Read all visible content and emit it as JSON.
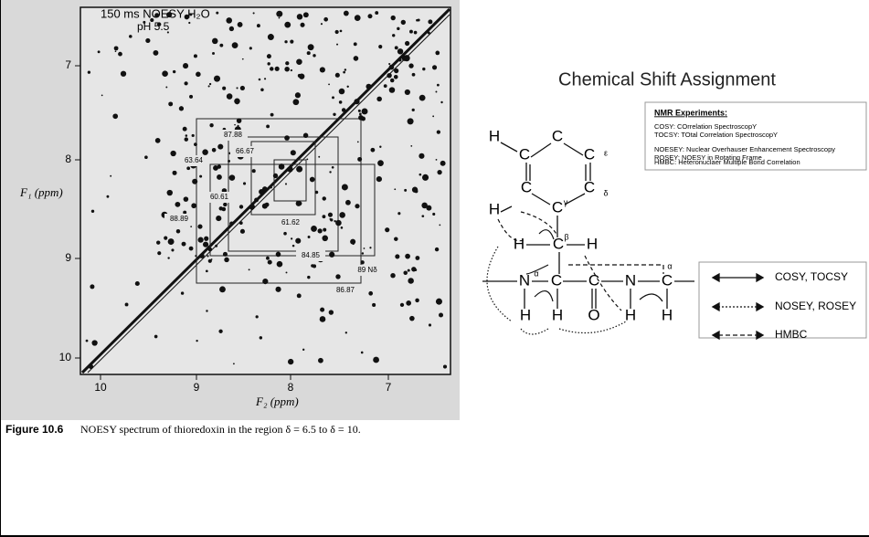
{
  "figure": {
    "annotation": "150 ms NOESY H₂O",
    "ph": "pH 5.5",
    "y_axis_label": "F₁ (ppm)",
    "x_axis_label": "F₂ (ppm)",
    "y_ticks": [
      "7",
      "8",
      "9",
      "10"
    ],
    "x_ticks": [
      "10",
      "9",
      "8",
      "7"
    ],
    "peak_labels": [
      "87.88",
      "66.67",
      "63.64",
      "60.61",
      "61.62",
      "88.89",
      "84.85",
      "89 Nδ",
      "86.87"
    ],
    "caption_label": "Figure 10.6",
    "caption_text": "NOESY spectrum of thioredoxin in the region δ = 6.5 to δ = 10."
  },
  "diagram": {
    "title": "Chemical Shift Assignment",
    "experiments": {
      "heading": "NMR Experiments:",
      "lines": [
        "COSY:  COrrelation SpectroscopY",
        "TOCSY: TOtal Correlation SpectroscopY",
        "NOESEY:  Nuclear Overhauser Enhancement Spectroscopy",
        "ROSEY:  NOESY in Rotating Frame",
        "HMBC:  Heteronuclaer Multiple Bond Correlation"
      ]
    },
    "atoms": [
      "H",
      "C",
      "C",
      "C",
      "ε",
      "C",
      "C",
      "δ",
      "C",
      "γ",
      "H",
      "H",
      "C",
      "β",
      "H",
      "N",
      "α",
      "C",
      "C",
      "N",
      "C",
      "α",
      "H",
      "H",
      "O",
      "H",
      "H"
    ],
    "legend": [
      "COSY, TOCSY",
      "NOSEY, ROSEY",
      "HMBC"
    ]
  }
}
